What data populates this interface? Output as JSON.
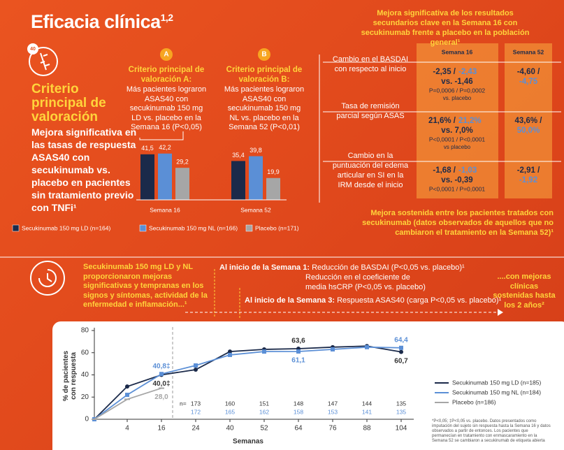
{
  "header": {
    "title": "Eficacia clínica",
    "title_sup": "1,2"
  },
  "primary": {
    "badge": "40",
    "heading": "Criterio principal de valoración",
    "text": "Mejora significativa en las tasas de respuesta ASAS40 con secukinumab vs. placebo en pacientes sin tratamiento previo con TNFi¹"
  },
  "criterion_a": {
    "letter": "A",
    "title": "Criterio principal de valoración A:",
    "text": "Más pacientes lograron ASAS40 con secukinumab 150 mg LD vs. placebo en la Semana 16 (P<0,05)"
  },
  "criterion_b": {
    "letter": "B",
    "title": "Criterio principal de valoración B:",
    "text": "Más pacientes lograron ASAS40 con secukinumab 150 mg NL vs. placebo en la Semana 52 (P<0,01)"
  },
  "secondary": {
    "title": "Mejora significativa de los resultados secundarios clave en la Semana 16 con secukinumab frente a placebo en la población general¹",
    "columns": [
      "Semana 16",
      "Semana 52"
    ],
    "rows": [
      {
        "label": "Cambio en el BASDAI con respecto al inicio",
        "week16": {
          "ld": "-2,35 /",
          "nl": "-2,43",
          "placebo": "vs. -1,46",
          "p": "P=0,0006 / P=0,0002",
          "p_note": "vs. placebo"
        },
        "week52": {
          "ld": "-4,60 /",
          "nl": "-4,75"
        }
      },
      {
        "label": "Tasa de remisión parcial según ASAS",
        "week16": {
          "ld": "21,6% /",
          "nl": "21,2%",
          "placebo": "vs. 7,0%",
          "p": "P<0,0001 / P<0,0001",
          "p_note": "vs placebo"
        },
        "week52": {
          "ld": "43,6% /",
          "nl": "50,0%"
        }
      },
      {
        "label": "Cambio en la puntuación del edema articular en SI en la IRM desde el inicio",
        "week16": {
          "ld": "-1,68 /",
          "nl": "-1,03",
          "placebo": "vs. -0,39",
          "p": "P<0,0001 / P=0,0001"
        },
        "week52": {
          "ld": "-2,91 /",
          "nl": "-1,92"
        }
      }
    ],
    "footer": "Mejora sostenida entre los pacientes tratados con secukinumab (datos observados de aquellos que no cambiaron el tratamiento en la Semana 52)¹"
  },
  "early": {
    "text": "Secukinumab 150 mg LD y NL proporcionaron mejoras significativas y tempranas en los signos y síntomas, actividad de la enfermedad e inflamación...¹",
    "week1_label": "Al inicio de la Semana 1:",
    "week1_text": "Reducción de BASDAI (P<0,05 vs. placebo)¹",
    "week1_text2": "Reducción en el coeficiente de media hsCRP (P<0,05 vs. placebo)",
    "week3_label": "Al inicio de la Semana 3:",
    "week3_text": "Respuesta ASAS40 (carga P<0,05 vs. placebo)¹",
    "sustained": "....con mejoras clínicas sostenidas hasta los 2 años²"
  },
  "chart_data": [
    {
      "type": "bar",
      "categories": [
        "Semana 16",
        "Semana 52"
      ],
      "series": [
        {
          "name": "Secukinumab 150 mg LD (n=164)",
          "color": "#1b2a4a",
          "values": [
            41.5,
            35.4
          ],
          "value_labels": [
            "41,5",
            "35,4"
          ]
        },
        {
          "name": "Secukinumab 150 mg NL (n=166)",
          "color": "#5b8fd6",
          "values": [
            42.2,
            39.8
          ],
          "value_labels": [
            "42,2",
            "39,8"
          ]
        },
        {
          "name": "Placebo (n=171)",
          "color": "#a6a6a6",
          "values": [
            29.2,
            19.9
          ],
          "value_labels": [
            "29,2",
            "19,9"
          ]
        }
      ]
    },
    {
      "type": "line",
      "categories": [
        null,
        "4",
        "16",
        "24",
        "40",
        "52",
        "64",
        "76",
        "88",
        "104"
      ],
      "ylim": [
        0,
        80
      ],
      "yticks": [
        0,
        20,
        40,
        60,
        80
      ],
      "xlabel": "Semanas",
      "ylabel": "% de pacientes con respuesta",
      "series": [
        {
          "name": "Secukinumab 150 mg LD (n=185)",
          "color": "#1b2a4a",
          "values": [
            0,
            29.5,
            40.0,
            44.7,
            61,
            63,
            63.6,
            65,
            66,
            60.7
          ],
          "value_labels": [
            null,
            null,
            "40,0‡",
            null,
            null,
            null,
            "63,6",
            null,
            null,
            "60,7"
          ]
        },
        {
          "name": "Secukinumab 150 mg NL (n=184)",
          "color": "#5b8fd6",
          "values": [
            0,
            22,
            40.8,
            48.5,
            58,
            61,
            61.1,
            63,
            65,
            64.4
          ],
          "value_labels": [
            null,
            null,
            "40,8‡",
            null,
            null,
            null,
            "61,1",
            null,
            null,
            "64,4"
          ]
        },
        {
          "name": "Placebo (n=186)",
          "color": "#a6a6a6",
          "values": [
            0,
            18,
            28.0,
            null,
            null,
            null,
            null,
            null,
            null,
            null
          ],
          "value_labels": [
            null,
            null,
            "28,0",
            null,
            null,
            null,
            null,
            null,
            null,
            null
          ]
        }
      ],
      "n_rows": [
        {
          "label": "n=",
          "values": [
            null,
            null,
            null,
            173,
            160,
            151,
            148,
            147,
            144,
            135
          ]
        },
        {
          "values": [
            null,
            null,
            null,
            172,
            165,
            162,
            158,
            153,
            141,
            135
          ]
        }
      ],
      "footnote": "*P<0,05; ‡P<0,05 vs. placebo. Datos presentados como imputación del sujeto sin respuesta hasta la Semana 16 y datos observados a partir de entonces. Los pacientes que permanecían en tratamiento con enmascaramiento en la Semana 52 se cambiaron a secukinumab de etiqueta abierta"
    }
  ]
}
